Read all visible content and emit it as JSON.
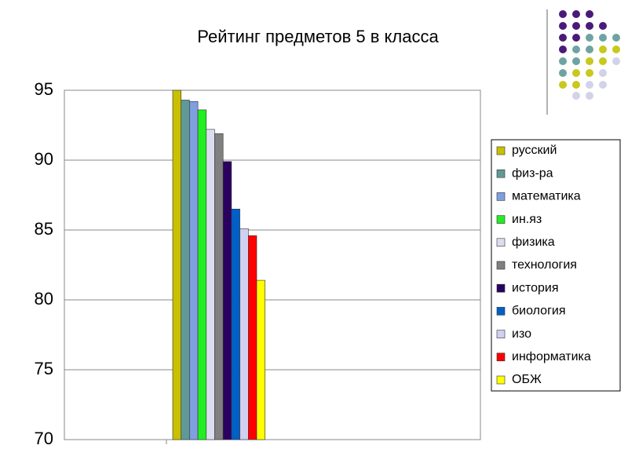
{
  "chart_data": {
    "type": "bar",
    "title": "Рейтинг предметов 5 в класса",
    "categories": [
      null
    ],
    "series": [
      {
        "name": "русский",
        "color": "#c8c000",
        "values": [
          95.0
        ]
      },
      {
        "name": "физ-ра",
        "color": "#5f9a96",
        "values": [
          94.3
        ]
      },
      {
        "name": "математика",
        "color": "#7f9fdf",
        "values": [
          94.2
        ]
      },
      {
        "name": "ин.яз",
        "color": "#22ee22",
        "values": [
          93.6
        ]
      },
      {
        "name": "физика",
        "color": "#dcdcf0",
        "values": [
          92.2
        ]
      },
      {
        "name": "технология",
        "color": "#808080",
        "values": [
          91.9
        ]
      },
      {
        "name": "история",
        "color": "#2a0060",
        "values": [
          89.9
        ]
      },
      {
        "name": "биология",
        "color": "#0060c8",
        "values": [
          86.5
        ]
      },
      {
        "name": "изо",
        "color": "#d0d0f0",
        "values": [
          85.1
        ]
      },
      {
        "name": "информатика",
        "color": "#ff0000",
        "values": [
          84.6
        ]
      },
      {
        "name": "ОБЖ",
        "color": "#ffff00",
        "values": [
          81.4
        ]
      }
    ],
    "ylim": [
      70,
      95
    ],
    "yticks": [
      70,
      75,
      80,
      85,
      90,
      95
    ],
    "grid": true,
    "legend": "right"
  }
}
